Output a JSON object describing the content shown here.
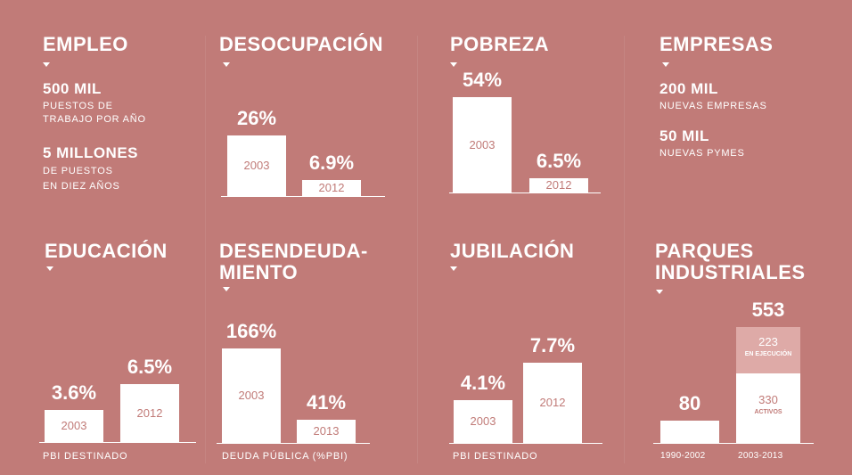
{
  "chart_data": [
    {
      "type": "table",
      "title": "EMPLEO",
      "items": [
        {
          "value": "500 MIL",
          "desc": [
            "PUESTOS DE",
            "TRABAJO POR AÑO"
          ]
        },
        {
          "value": "5 MILLONES",
          "desc": [
            "DE PUESTOS",
            "EN DIEZ AÑOS"
          ]
        }
      ]
    },
    {
      "type": "bar",
      "title": "DESOCUPACIÓN",
      "categories": [
        "2003",
        "2012"
      ],
      "values": [
        26,
        6.9
      ],
      "value_labels": [
        "26%",
        "6.9%"
      ],
      "ylim": [
        0,
        30
      ]
    },
    {
      "type": "bar",
      "title": "POBREZA",
      "categories": [
        "2003",
        "2012"
      ],
      "values": [
        54,
        6.5
      ],
      "value_labels": [
        "54%",
        "6.5%"
      ],
      "ylim": [
        0,
        54
      ]
    },
    {
      "type": "table",
      "title": "EMPRESAS",
      "items": [
        {
          "value": "200 MIL",
          "desc": [
            "NUEVAS EMPRESAS"
          ]
        },
        {
          "value": "50 MIL",
          "desc": [
            "NUEVAS PYMES"
          ]
        }
      ]
    },
    {
      "type": "bar",
      "title": "EDUCACIÓN",
      "categories": [
        "2003",
        "2012"
      ],
      "values": [
        3.6,
        6.5
      ],
      "value_labels": [
        "3.6%",
        "6.5%"
      ],
      "xlabel": "PBI DESTINADO",
      "ylim": [
        0,
        8
      ]
    },
    {
      "type": "bar",
      "title": "DESENDEUDA-\nMIENTO",
      "categories": [
        "2003",
        "2013"
      ],
      "values": [
        166,
        41
      ],
      "value_labels": [
        "166%",
        "41%"
      ],
      "xlabel": "DEUDA PÚBLICA (%PBI)",
      "ylim": [
        0,
        166
      ]
    },
    {
      "type": "bar",
      "title": "JUBILACIÓN",
      "categories": [
        "2003",
        "2012"
      ],
      "values": [
        4.1,
        7.7
      ],
      "value_labels": [
        "4.1%",
        "7.7%"
      ],
      "xlabel": "PBI DESTINADO",
      "ylim": [
        0,
        8
      ]
    },
    {
      "type": "bar",
      "title": "PARQUES\nINDUSTRIALES",
      "categories": [
        "1990-2002",
        "2003-2013"
      ],
      "values": [
        80,
        553
      ],
      "value_labels": [
        "80",
        "553"
      ],
      "stack_2003_2013": [
        {
          "value": 330,
          "label": "ACTIVOS"
        },
        {
          "value": 223,
          "label": "EN EJECUCIÓN"
        }
      ],
      "ylim": [
        0,
        553
      ]
    }
  ]
}
